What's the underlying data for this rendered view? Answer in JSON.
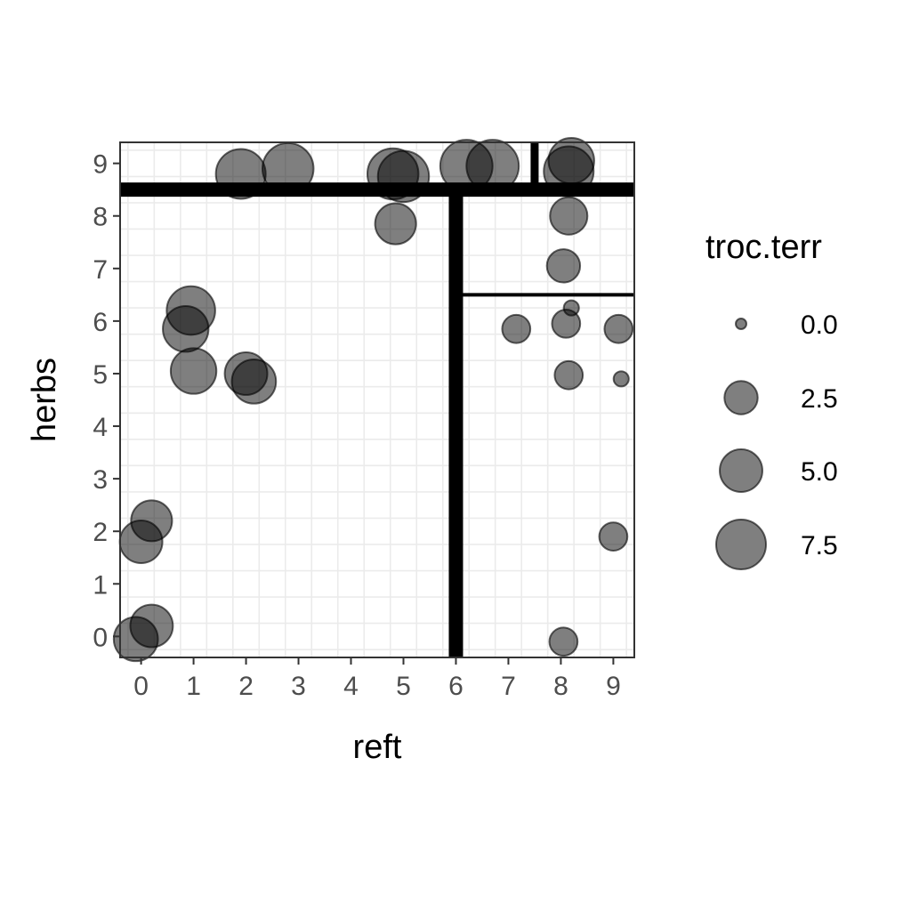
{
  "chart_data": {
    "type": "scatter",
    "xlabel": "reft",
    "ylabel": "herbs",
    "xlim": [
      -0.4,
      9.4
    ],
    "ylim": [
      -0.4,
      9.4
    ],
    "x_ticks": [
      "0",
      "1",
      "2",
      "3",
      "4",
      "5",
      "6",
      "7",
      "8",
      "9"
    ],
    "y_ticks": [
      "0",
      "1",
      "2",
      "3",
      "4",
      "5",
      "6",
      "7",
      "8",
      "9"
    ],
    "grid": true,
    "size_variable": "troc.terr",
    "legend": {
      "title": "troc.terr",
      "placement": "right",
      "entries": [
        {
          "label": "0.0",
          "value": 0.0
        },
        {
          "label": "2.5",
          "value": 2.5
        },
        {
          "label": "5.0",
          "value": 5.0
        },
        {
          "label": "7.5",
          "value": 7.5
        }
      ]
    },
    "point_color": "#000000",
    "point_alpha": 0.5,
    "points": [
      {
        "x": 1.9,
        "y": 8.8,
        "size": 7.5
      },
      {
        "x": 2.8,
        "y": 8.9,
        "size": 8.0
      },
      {
        "x": 4.8,
        "y": 8.8,
        "size": 8.0
      },
      {
        "x": 5.0,
        "y": 8.75,
        "size": 8.0
      },
      {
        "x": 6.2,
        "y": 8.95,
        "size": 8.5
      },
      {
        "x": 6.7,
        "y": 8.95,
        "size": 8.5
      },
      {
        "x": 8.2,
        "y": 9.05,
        "size": 6.0
      },
      {
        "x": 8.15,
        "y": 8.85,
        "size": 7.5
      },
      {
        "x": 4.85,
        "y": 7.85,
        "size": 4.5
      },
      {
        "x": 8.15,
        "y": 8.0,
        "size": 3.5
      },
      {
        "x": 8.05,
        "y": 7.05,
        "size": 2.5
      },
      {
        "x": 0.95,
        "y": 6.2,
        "size": 7.0
      },
      {
        "x": 0.85,
        "y": 5.85,
        "size": 6.0
      },
      {
        "x": 8.2,
        "y": 6.25,
        "size": 0.1
      },
      {
        "x": 7.15,
        "y": 5.85,
        "size": 1.5
      },
      {
        "x": 8.1,
        "y": 5.95,
        "size": 1.5
      },
      {
        "x": 9.1,
        "y": 5.85,
        "size": 1.5
      },
      {
        "x": 1.0,
        "y": 5.05,
        "size": 6.0
      },
      {
        "x": 2.0,
        "y": 5.0,
        "size": 5.0
      },
      {
        "x": 2.15,
        "y": 4.85,
        "size": 5.5
      },
      {
        "x": 8.15,
        "y": 4.97,
        "size": 1.5
      },
      {
        "x": 9.15,
        "y": 4.9,
        "size": 0.1
      },
      {
        "x": 0.2,
        "y": 2.2,
        "size": 4.5
      },
      {
        "x": 0.0,
        "y": 1.8,
        "size": 5.0
      },
      {
        "x": 9.0,
        "y": 1.9,
        "size": 1.5
      },
      {
        "x": 0.2,
        "y": 0.2,
        "size": 5.0
      },
      {
        "x": -0.1,
        "y": -0.05,
        "size": 5.5
      },
      {
        "x": 8.05,
        "y": -0.1,
        "size": 1.5
      }
    ],
    "splits": [
      {
        "orientation": "horizontal",
        "at": 8.5,
        "from": -0.4,
        "to": 9.4,
        "weight": "heavy"
      },
      {
        "orientation": "vertical",
        "at": 6.0,
        "from": -0.4,
        "to": 8.5,
        "weight": "heavy"
      },
      {
        "orientation": "vertical",
        "at": 7.5,
        "from": 8.5,
        "to": 9.4,
        "weight": "medium"
      },
      {
        "orientation": "horizontal",
        "at": 6.5,
        "from": 6.0,
        "to": 9.4,
        "weight": "thin"
      }
    ]
  }
}
